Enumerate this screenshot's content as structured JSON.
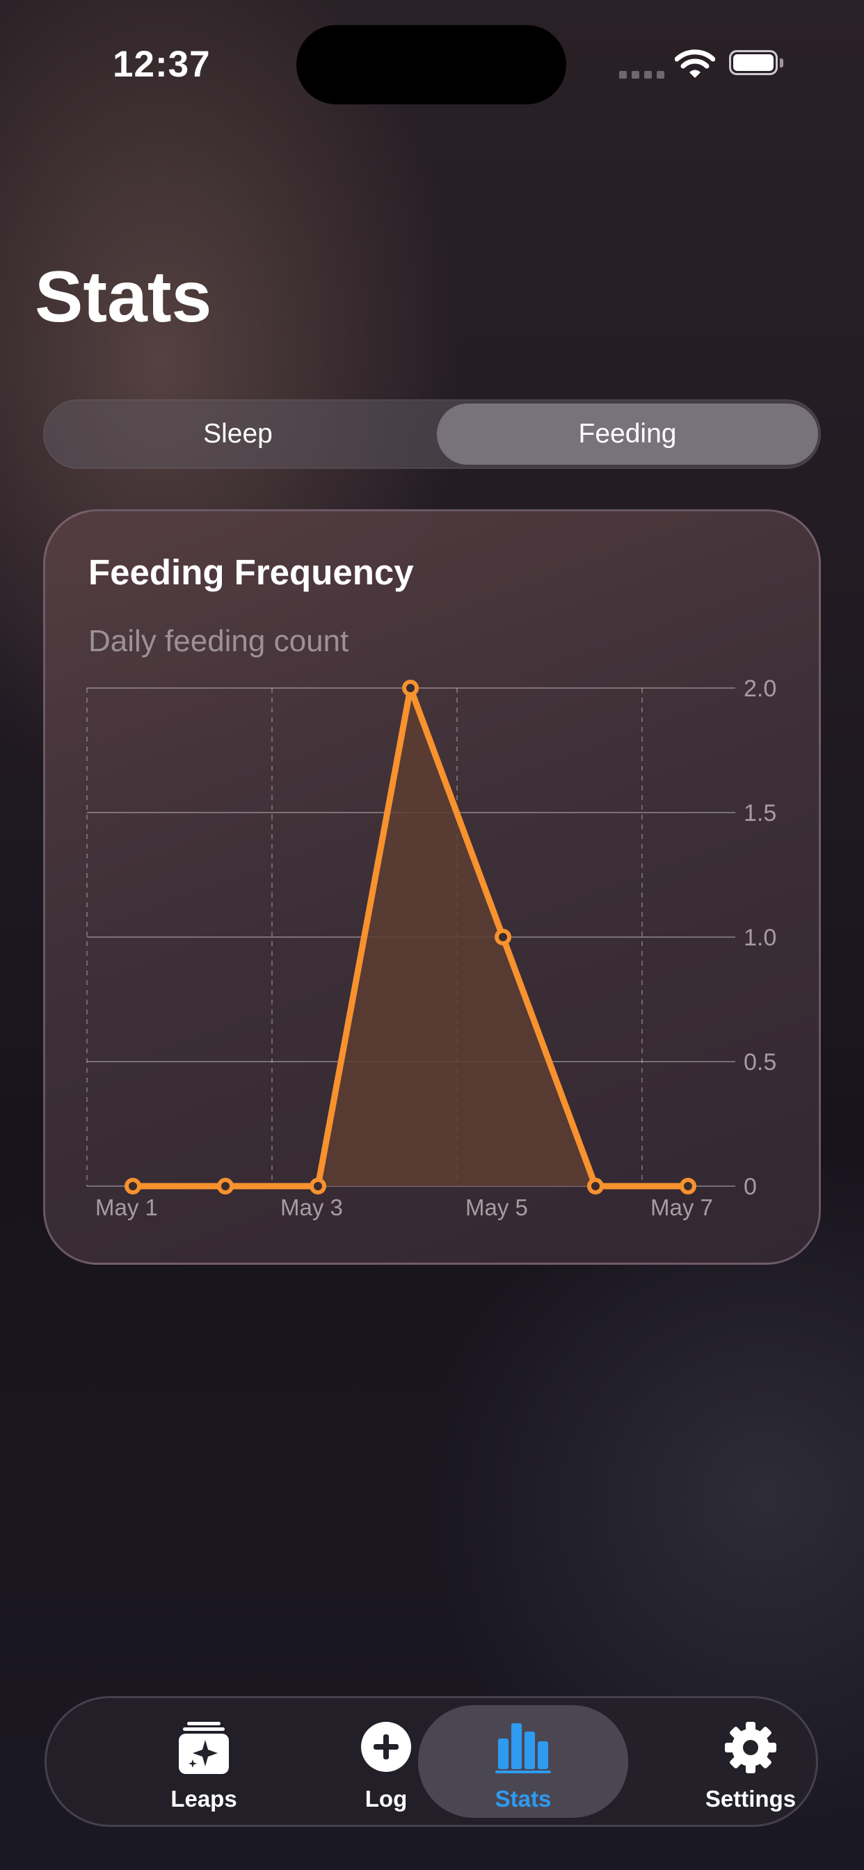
{
  "status_bar": {
    "time": "12:37"
  },
  "page": {
    "title": "Stats"
  },
  "segmented_control": {
    "options": [
      "Sleep",
      "Feeding"
    ],
    "selected": "Feeding"
  },
  "card": {
    "title": "Feeding Frequency",
    "subtitle": "Daily feeding count"
  },
  "chart_data": {
    "type": "area",
    "x": [
      "May 1",
      "May 2",
      "May 3",
      "May 4",
      "May 5",
      "May 6",
      "May 7"
    ],
    "values": [
      0,
      0,
      0,
      2,
      1,
      0,
      0
    ],
    "x_tick_labels": [
      "May 1",
      "May 3",
      "May 5",
      "May 7"
    ],
    "y_tick_labels": [
      "0",
      "0.5",
      "1.0",
      "1.5",
      "2.0"
    ],
    "y_ticks": [
      0,
      0.5,
      1.0,
      1.5,
      2.0
    ],
    "ylim": [
      0,
      2
    ],
    "title": "Feeding Frequency",
    "subtitle": "Daily feeding count",
    "xlabel": "",
    "ylabel": "",
    "grid": true,
    "y_axis_position": "right",
    "line_color": "#f7922f",
    "fill_color": "#5d3d31"
  },
  "tab_bar": {
    "items": [
      {
        "label": "Leaps",
        "icon": "leaps-icon",
        "active": false
      },
      {
        "label": "Log",
        "icon": "plus-circle-icon",
        "active": false
      },
      {
        "label": "Stats",
        "icon": "bar-chart-icon",
        "active": true
      },
      {
        "label": "Settings",
        "icon": "gear-icon",
        "active": false
      }
    ],
    "active_color": "#2e9bf0"
  }
}
